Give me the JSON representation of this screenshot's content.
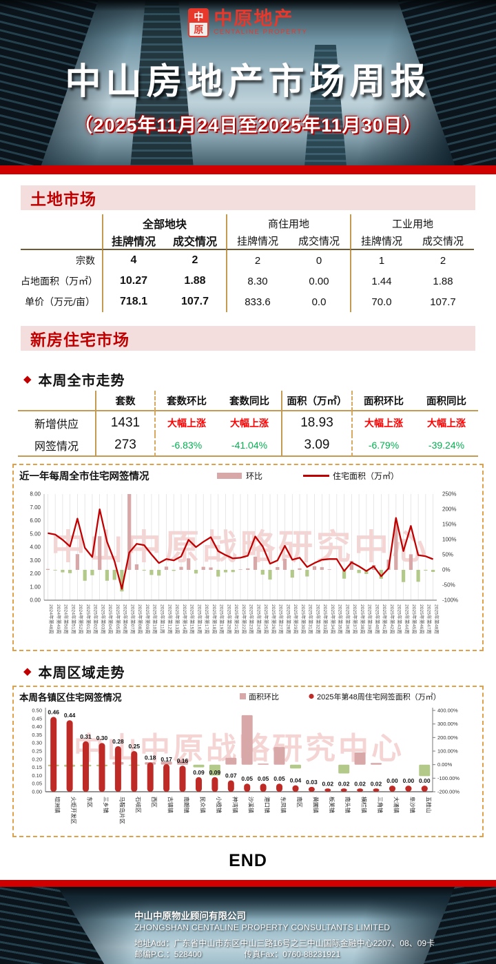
{
  "header": {
    "seal_top": "中",
    "seal_bottom": "原",
    "brand_cn": "中原地产",
    "brand_en": "CENTALINE PROPERTY",
    "title": "中山房地产市场周报",
    "subtitle": "（2025年11月24日至2025年11月30日）"
  },
  "land_market": {
    "section_title": "土地市场",
    "table": {
      "col_groups": [
        "全部地块",
        "商住用地",
        "工业用地"
      ],
      "sub_headers": [
        "挂牌情况",
        "成交情况"
      ],
      "rows": [
        {
          "label": "宗数",
          "values": [
            "4",
            "2",
            "2",
            "0",
            "1",
            "2"
          ]
        },
        {
          "label": "占地面积（万㎡）",
          "values": [
            "10.27",
            "1.88",
            "8.30",
            "0.00",
            "1.44",
            "1.88"
          ]
        },
        {
          "label": "单价（万元/亩）",
          "values": [
            "718.1",
            "107.7",
            "833.6",
            "0.0",
            "70.0",
            "107.7"
          ]
        }
      ]
    }
  },
  "new_house": {
    "section_title": "新房住宅市场",
    "weekly_trend": {
      "heading": "本周全市走势",
      "table": {
        "headers": [
          "",
          "套数",
          "套数环比",
          "套数同比",
          "面积（万㎡）",
          "面积环比",
          "面积同比"
        ],
        "rows": [
          {
            "label": "新增供应",
            "cells": [
              {
                "t": "1431",
                "tone": "num"
              },
              {
                "t": "大幅上涨",
                "tone": "up"
              },
              {
                "t": "大幅上涨",
                "tone": "up"
              },
              {
                "t": "18.93",
                "tone": "num"
              },
              {
                "t": "大幅上涨",
                "tone": "up"
              },
              {
                "t": "大幅上涨",
                "tone": "up"
              }
            ]
          },
          {
            "label": "网签情况",
            "cells": [
              {
                "t": "273",
                "tone": "num"
              },
              {
                "t": "-6.83%",
                "tone": "down"
              },
              {
                "t": "-41.04%",
                "tone": "down"
              },
              {
                "t": "3.09",
                "tone": "num"
              },
              {
                "t": "-6.79%",
                "tone": "down"
              },
              {
                "t": "-39.24%",
                "tone": "down"
              }
            ]
          }
        ]
      }
    },
    "district_trend": {
      "heading": "本周区域走势"
    }
  },
  "chart_data": [
    {
      "type": "bar+line",
      "title": "近一年每周全市住宅网签情况",
      "watermark": "中山中原战略研究中心",
      "legend": [
        {
          "label": "环比",
          "swatch": "bar"
        },
        {
          "label": "住宅面积（万㎡）",
          "swatch": "line"
        }
      ],
      "left_axis": {
        "min": 0,
        "max": 8,
        "step": 1,
        "format": "0.00"
      },
      "right_axis": {
        "min": -100,
        "max": 250,
        "step": 50,
        "format": "percent"
      },
      "labels": [
        "2024年第48周",
        "2024年第49周",
        "2024年第50周",
        "2024年第51周",
        "2024年第52周",
        "2025年第01周",
        "2025年第02周",
        "2025年第03周",
        "2025年第04周",
        "2025年第05周",
        "2025年第06周",
        "2025年第07周",
        "2025年第08周",
        "2025年第09周",
        "2025年第10周",
        "2025年第11周",
        "2025年第12周",
        "2025年第13周",
        "2025年第14周",
        "2025年第15周",
        "2025年第16周",
        "2025年第17周",
        "2025年第18周",
        "2025年第19周",
        "2025年第20周",
        "2025年第21周",
        "2025年第22周",
        "2025年第23周",
        "2025年第24周",
        "2025年第25周",
        "2025年第26周",
        "2025年第27周",
        "2025年第28周",
        "2025年第29周",
        "2025年第30周",
        "2025年第31周",
        "2025年第32周",
        "2025年第33周",
        "2025年第34周",
        "2025年第35周",
        "2025年第36周",
        "2025年第37周",
        "2025年第38周",
        "2025年第39周",
        "2025年第40周",
        "2025年第41周",
        "2025年第42周",
        "2025年第43周",
        "2025年第44周",
        "2025年第45周",
        "2025年第46周",
        "2025年第47周",
        "2025年第48周"
      ],
      "area_series": [
        5.05,
        4.95,
        4.55,
        4.05,
        6.15,
        3.95,
        3.25,
        6.85,
        4.4,
        2.95,
        0.85,
        3.6,
        4.25,
        4.15,
        3.45,
        2.8,
        3.1,
        3.0,
        3.3,
        4.55,
        4.0,
        4.4,
        4.75,
        3.7,
        3.4,
        3.15,
        3.2,
        3.35,
        4.8,
        4.05,
        2.75,
        3.0,
        4.1,
        3.05,
        3.2,
        2.5,
        2.8,
        3.05,
        3.1,
        3.1,
        2.2,
        2.85,
        2.55,
        2.2,
        2.55,
        1.8,
        2.4,
        6.2,
        3.7,
        5.6,
        3.4,
        3.31,
        3.09
      ],
      "pct_series": [
        3.0,
        -2.0,
        -8.1,
        -11.0,
        51.9,
        -35.8,
        -17.7,
        110.8,
        -35.8,
        -33.0,
        -71.2,
        323.5,
        18.1,
        -2.4,
        -16.9,
        -18.8,
        10.7,
        -3.2,
        10.0,
        37.9,
        -12.1,
        10.0,
        8.0,
        -22.1,
        -8.1,
        -7.4,
        1.6,
        4.7,
        43.3,
        -15.6,
        -32.1,
        9.1,
        36.7,
        -25.6,
        4.9,
        -21.9,
        12.0,
        8.9,
        1.6,
        0.0,
        -29.0,
        29.5,
        -10.5,
        -13.7,
        15.9,
        -29.4,
        33.3,
        158.3,
        -40.3,
        51.4,
        -39.3,
        -2.6,
        -6.8
      ]
    },
    {
      "type": "bar",
      "title": "本周各镇区住宅网签情况",
      "watermark": "中山中原战略研究中心",
      "legend": [
        {
          "label": "面积环比",
          "swatch": "bar"
        },
        {
          "label": "2025年第48周住宅网签面积（万㎡）",
          "swatch": "dot"
        }
      ],
      "left_axis": {
        "min": 0,
        "max": 0.5,
        "step": 0.05,
        "format": "0.00"
      },
      "right_axis": {
        "min": -200,
        "max": 400,
        "step": 100,
        "format": "percent2"
      },
      "categories": [
        "坦洲镇",
        "火炬开发区",
        "东区",
        "三乡镇",
        "马鞍岛片区",
        "石岐区",
        "西区",
        "古镇镇",
        "南朗镇",
        "民众镇",
        "小榄镇",
        "神湾镇",
        "沙溪镇",
        "港口镇",
        "东凤镇",
        "南区",
        "黄圃镇",
        "板芙镇",
        "南头镇",
        "横栏镇",
        "三角镇",
        "大涌镇",
        "阜沙镇",
        "五桂山"
      ],
      "area_values": [
        0.46,
        0.44,
        0.31,
        0.3,
        0.28,
        0.25,
        0.18,
        0.17,
        0.16,
        0.09,
        0.09,
        0.07,
        0.05,
        0.05,
        0.05,
        0.04,
        0.03,
        0.02,
        0.02,
        0.02,
        0.02,
        0.0,
        0.0,
        0.0
      ],
      "pct_values": [
        -12,
        -15,
        -13,
        -12,
        20,
        -8,
        18,
        22,
        35,
        -20,
        -80,
        50,
        365,
        8,
        130,
        -28,
        0,
        0,
        -65,
        90,
        12,
        0,
        0,
        -85
      ]
    }
  ],
  "colors": {
    "accent_red": "#C00000",
    "bar_pink": "#D8A7A7",
    "bar_green": "#B2C98A",
    "line_red": "#C00000",
    "col_darkred": "#BE2A25",
    "watermark_pink": "#F5D0D0"
  },
  "end_label": "END",
  "footer": {
    "company_cn": "中山中原物业顾问有限公司",
    "company_en": "ZHONGSHAN CENTALINE PROPERTY CONSULTANTS LIMITED",
    "address": "地址Add：广东省中山市东区中山三路16号之三中山国际金融中心2207、08、09卡",
    "postal": "邮编P.C.：528400",
    "fax": "传真Fax：0760-88231921"
  }
}
